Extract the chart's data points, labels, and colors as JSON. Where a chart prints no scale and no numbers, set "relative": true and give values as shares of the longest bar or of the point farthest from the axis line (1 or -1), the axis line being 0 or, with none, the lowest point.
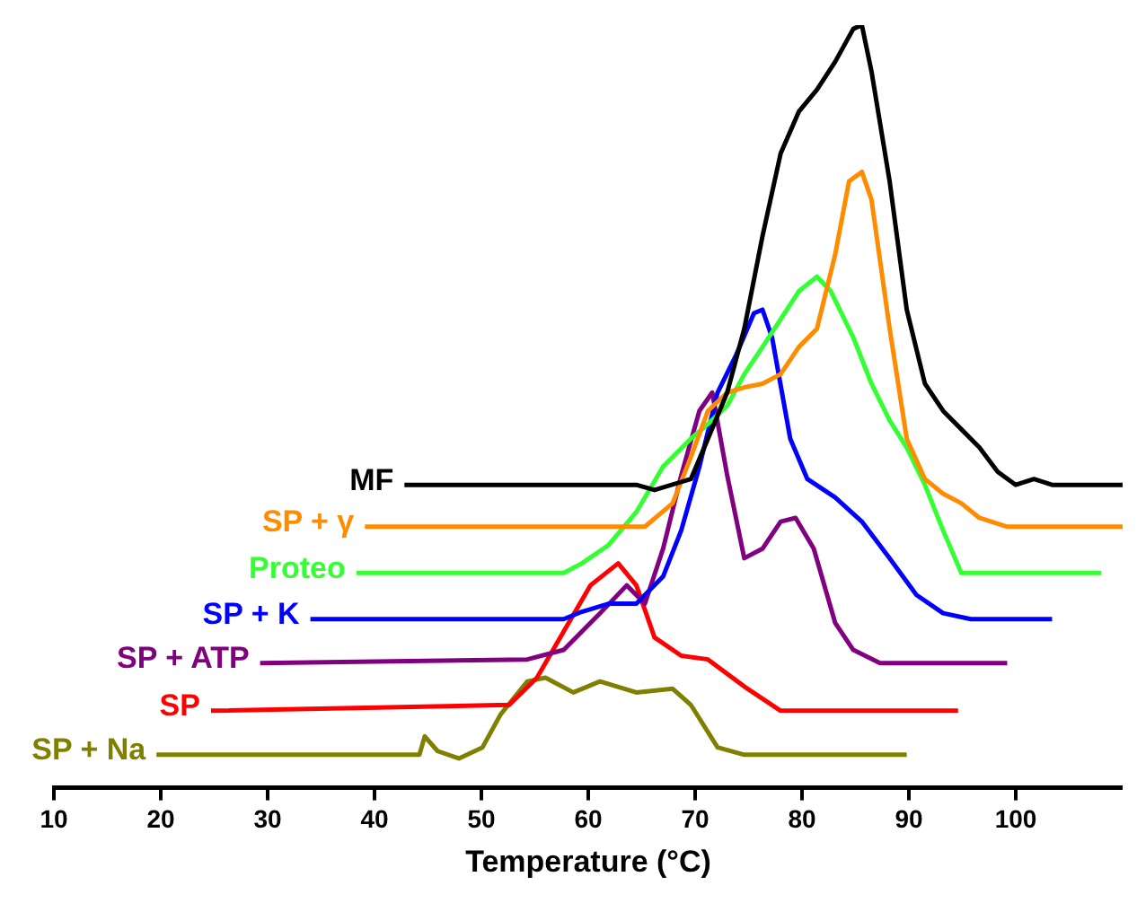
{
  "chart_data": {
    "type": "line",
    "xlabel": "Temperature (°C)",
    "relative": true,
    "xlim": [
      10,
      110
    ],
    "xticks": [
      10,
      20,
      30,
      40,
      50,
      60,
      70,
      80,
      90,
      100
    ],
    "grid": false,
    "legend": false,
    "marker": "none",
    "line_style": "solid",
    "series": [
      {
        "name": "MF",
        "color": "#000000",
        "x": [
          42.8,
          64.5,
          66.2,
          69.6,
          71.2,
          73,
          74.6,
          76.3,
          78,
          79.7,
          81.4,
          83.1,
          84.8,
          85.6,
          86.5,
          88.2,
          89.8,
          91.5,
          93.2,
          94.9,
          96.6,
          98.3,
          100,
          101.7,
          103.4,
          110
        ],
        "values": [
          0.373,
          0.373,
          0.366,
          0.381,
          0.436,
          0.499,
          0.586,
          0.712,
          0.825,
          0.882,
          0.912,
          0.95,
          0.995,
          1,
          0.937,
          0.787,
          0.612,
          0.511,
          0.474,
          0.449,
          0.424,
          0.391,
          0.373,
          0.381,
          0.373,
          0.373
        ]
      },
      {
        "name": "SP + γ",
        "color": "#ff8c00",
        "x": [
          39.1,
          65.3,
          67.9,
          69.6,
          71.2,
          73,
          74.6,
          76.3,
          78,
          79.7,
          81.4,
          83.1,
          84.4,
          85.6,
          86.5,
          88.2,
          89.8,
          91.5,
          93.2,
          94.9,
          96.6,
          99.2,
          110
        ],
        "values": [
          0.316,
          0.316,
          0.348,
          0.411,
          0.474,
          0.499,
          0.506,
          0.511,
          0.524,
          0.561,
          0.586,
          0.687,
          0.787,
          0.8,
          0.762,
          0.586,
          0.436,
          0.381,
          0.361,
          0.348,
          0.328,
          0.316,
          0.316
        ]
      },
      {
        "name": "Proteo",
        "color": "#33ff33",
        "x": [
          38.3,
          57.7,
          59.4,
          61.9,
          64.5,
          67,
          69.6,
          71.2,
          73,
          74.6,
          76.3,
          78,
          79.7,
          81.4,
          82.7,
          84.8,
          86.5,
          88.2,
          89.8,
          91.5,
          93.2,
          94.9,
          108
        ],
        "values": [
          0.253,
          0.253,
          0.266,
          0.291,
          0.336,
          0.398,
          0.436,
          0.456,
          0.481,
          0.524,
          0.561,
          0.599,
          0.637,
          0.657,
          0.637,
          0.574,
          0.511,
          0.461,
          0.424,
          0.373,
          0.311,
          0.253,
          0.253
        ]
      },
      {
        "name": "SP + K",
        "color": "#0000ff",
        "x": [
          34,
          57.7,
          59.4,
          61.9,
          64.5,
          67,
          68.7,
          70.4,
          72.1,
          73.8,
          75.5,
          76.3,
          77.2,
          78.9,
          80.5,
          83.1,
          85.6,
          88.2,
          90.7,
          93.2,
          95.8,
          103.4
        ],
        "values": [
          0.19,
          0.19,
          0.2,
          0.211,
          0.211,
          0.248,
          0.311,
          0.398,
          0.499,
          0.549,
          0.607,
          0.612,
          0.574,
          0.436,
          0.381,
          0.356,
          0.323,
          0.273,
          0.223,
          0.198,
          0.19,
          0.19
        ]
      },
      {
        "name": "SP + ATP",
        "color": "#800080",
        "x": [
          29.3,
          54.3,
          57.7,
          61.1,
          63.6,
          65.3,
          67,
          68.7,
          70.4,
          71.6,
          73,
          74.6,
          76.3,
          78,
          79.4,
          81.1,
          83.1,
          84.8,
          87.3,
          99.2
        ],
        "values": [
          0.13,
          0.135,
          0.148,
          0.198,
          0.236,
          0.211,
          0.286,
          0.386,
          0.474,
          0.499,
          0.386,
          0.273,
          0.286,
          0.323,
          0.328,
          0.286,
          0.185,
          0.148,
          0.13,
          0.13
        ]
      },
      {
        "name": "SP",
        "color": "#ff0000",
        "x": [
          24.7,
          52.6,
          55.2,
          57.7,
          60.2,
          62.8,
          64.5,
          66.2,
          68.7,
          71.2,
          74.6,
          78,
          94.6
        ],
        "values": [
          0.065,
          0.073,
          0.11,
          0.173,
          0.236,
          0.266,
          0.236,
          0.165,
          0.14,
          0.135,
          0.098,
          0.065,
          0.065
        ]
      },
      {
        "name": "SP + Na",
        "color": "#808000",
        "x": [
          19.6,
          44.2,
          44.7,
          45.9,
          47.9,
          50.1,
          51.8,
          54.3,
          56,
          58.6,
          61.1,
          64.5,
          67.9,
          69.6,
          72.1,
          74.6,
          89.8
        ],
        "values": [
          0.005,
          0.005,
          0.03,
          0.01,
          0,
          0.015,
          0.06,
          0.105,
          0.11,
          0.09,
          0.105,
          0.09,
          0.095,
          0.073,
          0.015,
          0.005,
          0.005
        ]
      }
    ]
  }
}
